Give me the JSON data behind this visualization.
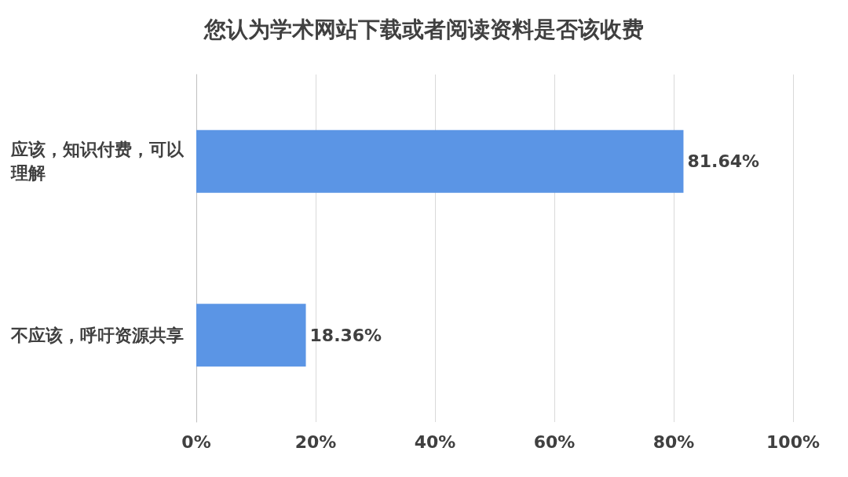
{
  "chart_data": {
    "type": "bar",
    "orientation": "horizontal",
    "title": "您认为学术网站下载或者阅读资料是否该收费",
    "categories": [
      "应该，知识付费，可以理解",
      "不应该，呼吁资源共享"
    ],
    "values": [
      81.64,
      18.36
    ],
    "color": "#5b95e5",
    "value_labels": [
      "81.64%",
      "18.36%"
    ],
    "xlim": [
      0,
      100
    ],
    "xticks": [
      {
        "value": 0,
        "label": "0%"
      },
      {
        "value": 20,
        "label": "20%"
      },
      {
        "value": 40,
        "label": "40%"
      },
      {
        "value": 60,
        "label": "60%"
      },
      {
        "value": 80,
        "label": "80%"
      },
      {
        "value": 100,
        "label": "100%"
      }
    ],
    "grid": "x"
  }
}
